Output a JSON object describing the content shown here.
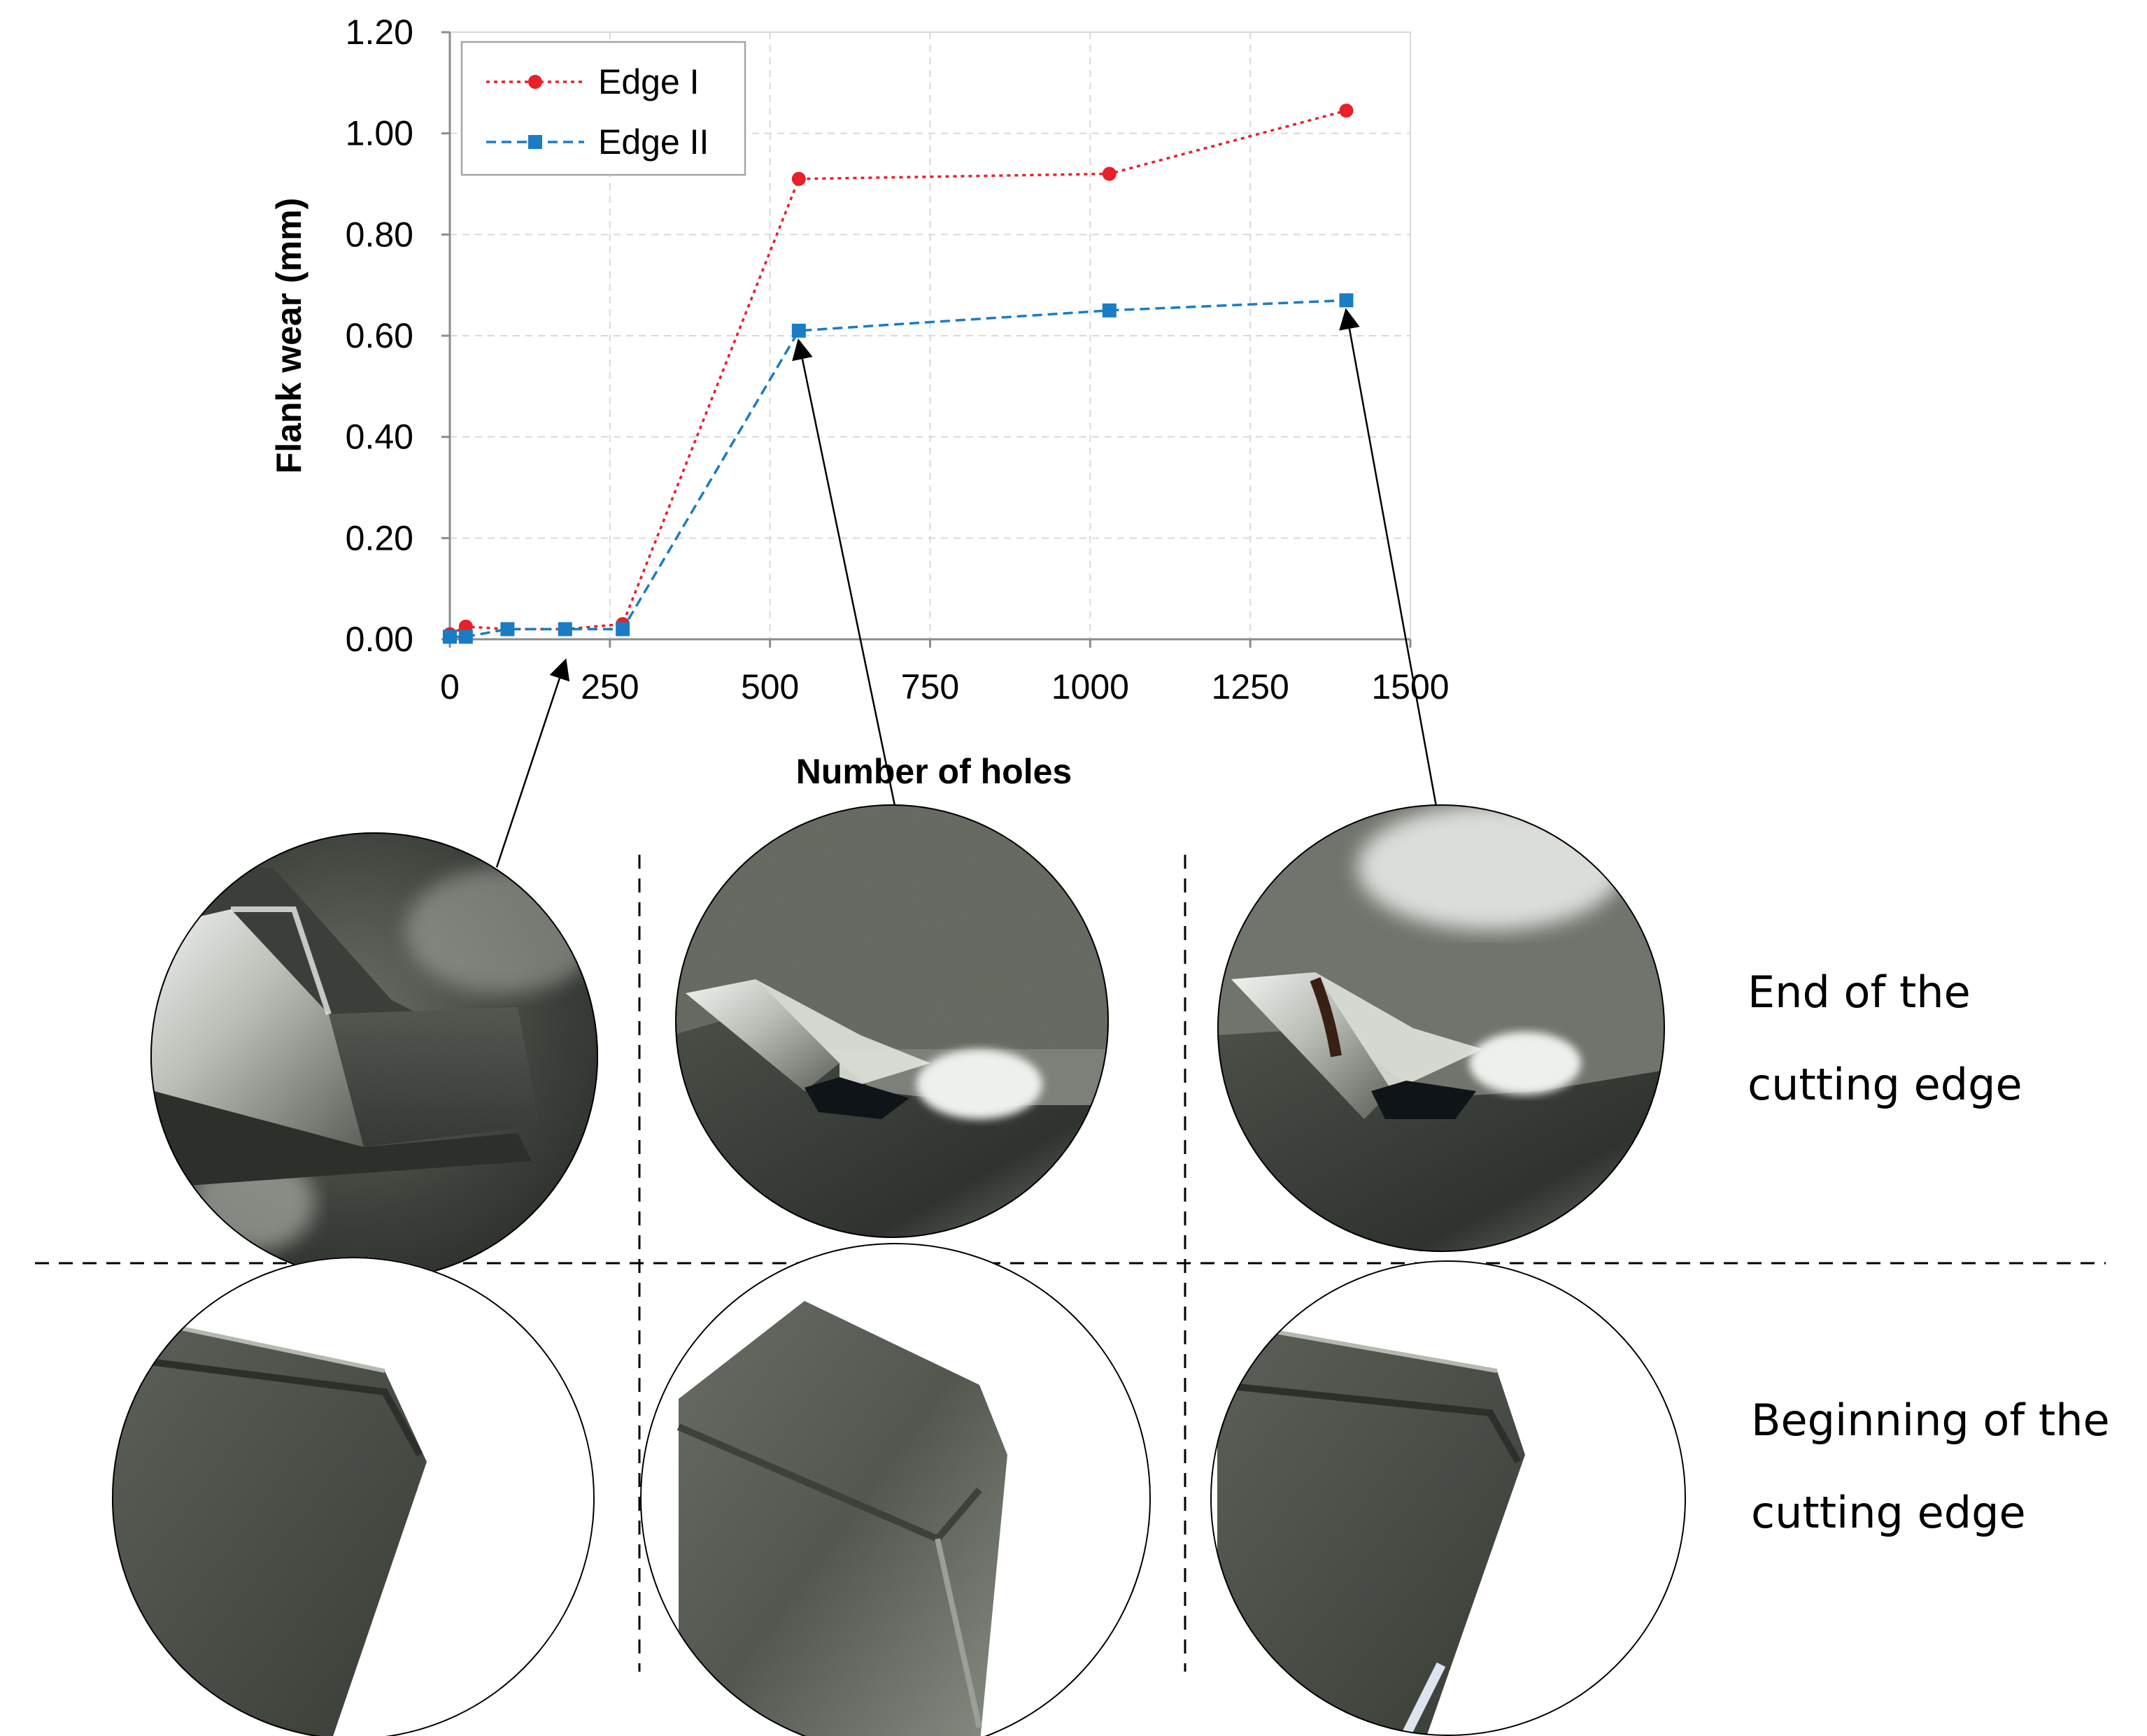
{
  "chart_data": {
    "type": "line",
    "xlabel": "Number of holes",
    "ylabel": "Flank wear (mm)",
    "xlim": [
      0,
      1500
    ],
    "ylim": [
      0,
      1.2
    ],
    "xticks": [
      "0",
      "250",
      "500",
      "750",
      "1000",
      "1250",
      "1500"
    ],
    "xtick_values": [
      0,
      250,
      500,
      750,
      1000,
      1250,
      1500
    ],
    "yticks": [
      "0.00",
      "0.20",
      "0.40",
      "0.60",
      "0.80",
      "1.00",
      "1.20"
    ],
    "ytick_values": [
      0,
      0.2,
      0.4,
      0.6,
      0.8,
      1.0,
      1.2
    ],
    "grid": true,
    "legend_position": "top-left",
    "series": [
      {
        "name": "Edge I",
        "color": "#e8202a",
        "marker": "circle",
        "line_style": "dotted",
        "x": [
          0,
          25,
          90,
          180,
          270,
          545,
          1030,
          1400
        ],
        "y": [
          0.01,
          0.025,
          0.02,
          0.02,
          0.03,
          0.91,
          0.92,
          1.045
        ]
      },
      {
        "name": "Edge II",
        "color": "#1a7cc4",
        "marker": "square",
        "line_style": "dashed",
        "x": [
          0,
          25,
          90,
          180,
          270,
          545,
          1030,
          1400
        ],
        "y": [
          0.005,
          0.005,
          0.02,
          0.02,
          0.02,
          0.61,
          0.65,
          0.67
        ]
      }
    ],
    "arrow_targets": [
      {
        "x": 180,
        "y": 0.0
      },
      {
        "x": 545,
        "y": 0.61
      },
      {
        "x": 1400,
        "y": 0.67
      }
    ]
  },
  "row_labels": {
    "end": [
      "End of the",
      "cutting edge"
    ],
    "beginning": [
      "Beginning of the",
      "cutting edge"
    ]
  },
  "photos": {
    "edge_background": "#ffffff",
    "tool_dark": "#3b403a",
    "tool_mid": "#6b7068",
    "tool_light": "#c9ccc6",
    "wear_white": "#eef0ec",
    "wear_black": "#101417"
  }
}
